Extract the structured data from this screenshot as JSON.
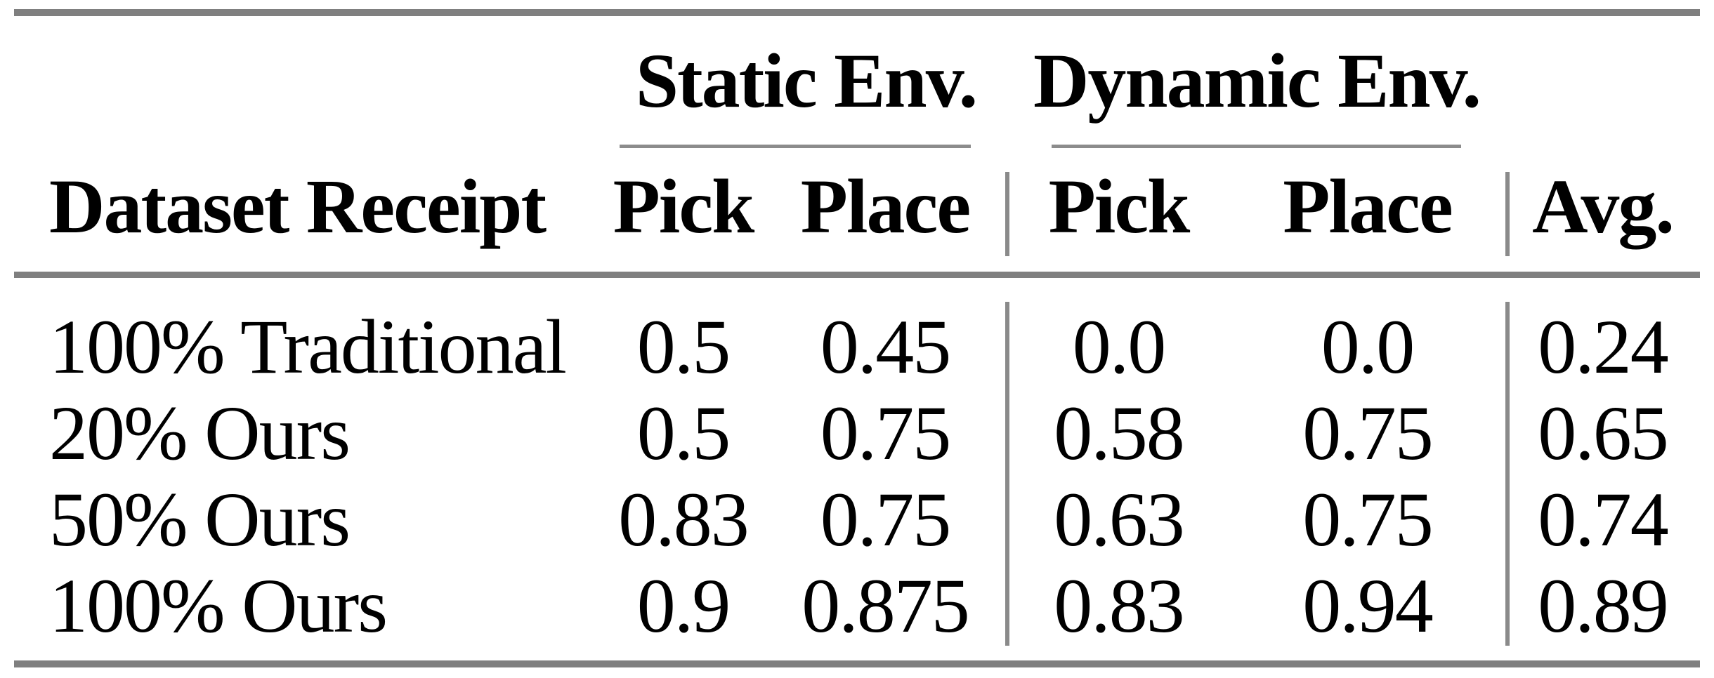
{
  "figure": {
    "background": "#ffffff",
    "colors": {
      "thick_rule": "#7f7f7f",
      "thin_rule": "#8c8c8c",
      "divider": "#8a8a8a",
      "text": "#000000"
    }
  },
  "table": {
    "groups": [
      {
        "label": "Static Env."
      },
      {
        "label": "Dynamic Env."
      }
    ],
    "columns": [
      "Dataset Receipt",
      "Pick",
      "Place",
      "Pick",
      "Place",
      "Avg."
    ],
    "rows": [
      {
        "cells": [
          "100% Traditional",
          "0.5",
          "0.45",
          "0.0",
          "0.0",
          "0.24"
        ]
      },
      {
        "cells": [
          "20% Ours",
          "0.5",
          "0.75",
          "0.58",
          "0.75",
          "0.65"
        ]
      },
      {
        "cells": [
          "50% Ours",
          "0.83",
          "0.75",
          "0.63",
          "0.75",
          "0.74"
        ]
      },
      {
        "cells": [
          "100% Ours",
          "0.9",
          "0.875",
          "0.83",
          "0.94",
          "0.89"
        ]
      }
    ]
  },
  "chart_data": {
    "type": "table",
    "title": "",
    "column_groups": [
      {
        "label": "Static Env.",
        "columns": [
          "Pick",
          "Place"
        ]
      },
      {
        "label": "Dynamic Env.",
        "columns": [
          "Pick",
          "Place"
        ]
      }
    ],
    "columns": [
      "Dataset Receipt",
      "Static Env. Pick",
      "Static Env. Place",
      "Dynamic Env. Pick",
      "Dynamic Env. Place",
      "Avg."
    ],
    "rows": [
      [
        "100% Traditional",
        0.5,
        0.45,
        0.0,
        0.0,
        0.24
      ],
      [
        "20% Ours",
        0.5,
        0.75,
        0.58,
        0.75,
        0.65
      ],
      [
        "50% Ours",
        0.83,
        0.75,
        0.63,
        0.75,
        0.74
      ],
      [
        "100% Ours",
        0.9,
        0.875,
        0.83,
        0.94,
        0.89
      ]
    ]
  }
}
